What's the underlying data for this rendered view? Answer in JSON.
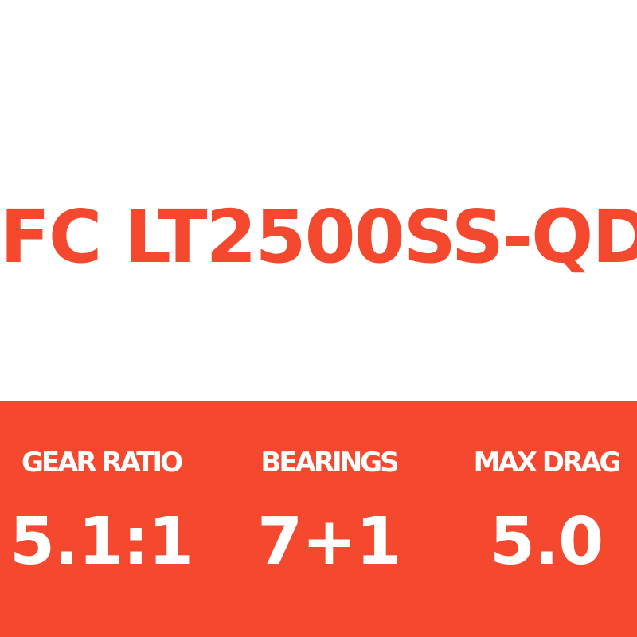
{
  "title": "FC LT2500SS-QD",
  "colors": {
    "accent": "#f5492f",
    "background": "#ffffff",
    "band_text": "#ffffff"
  },
  "specs": [
    {
      "label": "GEAR RATIO",
      "value": "5.1:1"
    },
    {
      "label": "BEARINGS",
      "value": "7+1"
    },
    {
      "label": "MAX DRAG",
      "value": "5.0"
    }
  ]
}
